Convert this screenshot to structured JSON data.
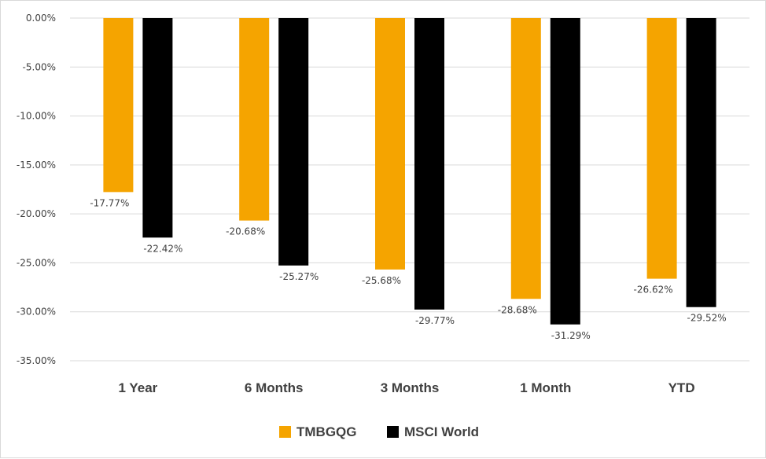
{
  "chart_data": {
    "type": "bar",
    "categories": [
      "1 Year",
      "6 Months",
      "3 Months",
      "1 Month",
      "YTD"
    ],
    "series": [
      {
        "name": "TMBGQG",
        "values": [
          -17.77,
          -20.68,
          -25.68,
          -28.68,
          -26.62
        ],
        "color": "#F5A400"
      },
      {
        "name": "MSCI World",
        "values": [
          -22.42,
          -25.27,
          -29.77,
          -31.29,
          -29.52
        ],
        "color": "#000000"
      }
    ],
    "data_labels": [
      [
        "-17.77%",
        "-20.68%",
        "-25.68%",
        "-28.68%",
        "-26.62%"
      ],
      [
        "-22.42%",
        "-25.27%",
        "-29.77%",
        "-31.29%",
        "-29.52%"
      ]
    ],
    "yticks": [
      0,
      -5,
      -10,
      -15,
      -20,
      -25,
      -30,
      -35
    ],
    "ytick_labels": [
      "0.00%",
      "-5.00%",
      "-10.00%",
      "-15.00%",
      "-20.00%",
      "-25.00%",
      "-30.00%",
      "-35.00%"
    ],
    "ylim": [
      -35,
      0
    ],
    "grid": true,
    "legend_position": "bottom",
    "title": "",
    "xlabel": "",
    "ylabel": ""
  }
}
